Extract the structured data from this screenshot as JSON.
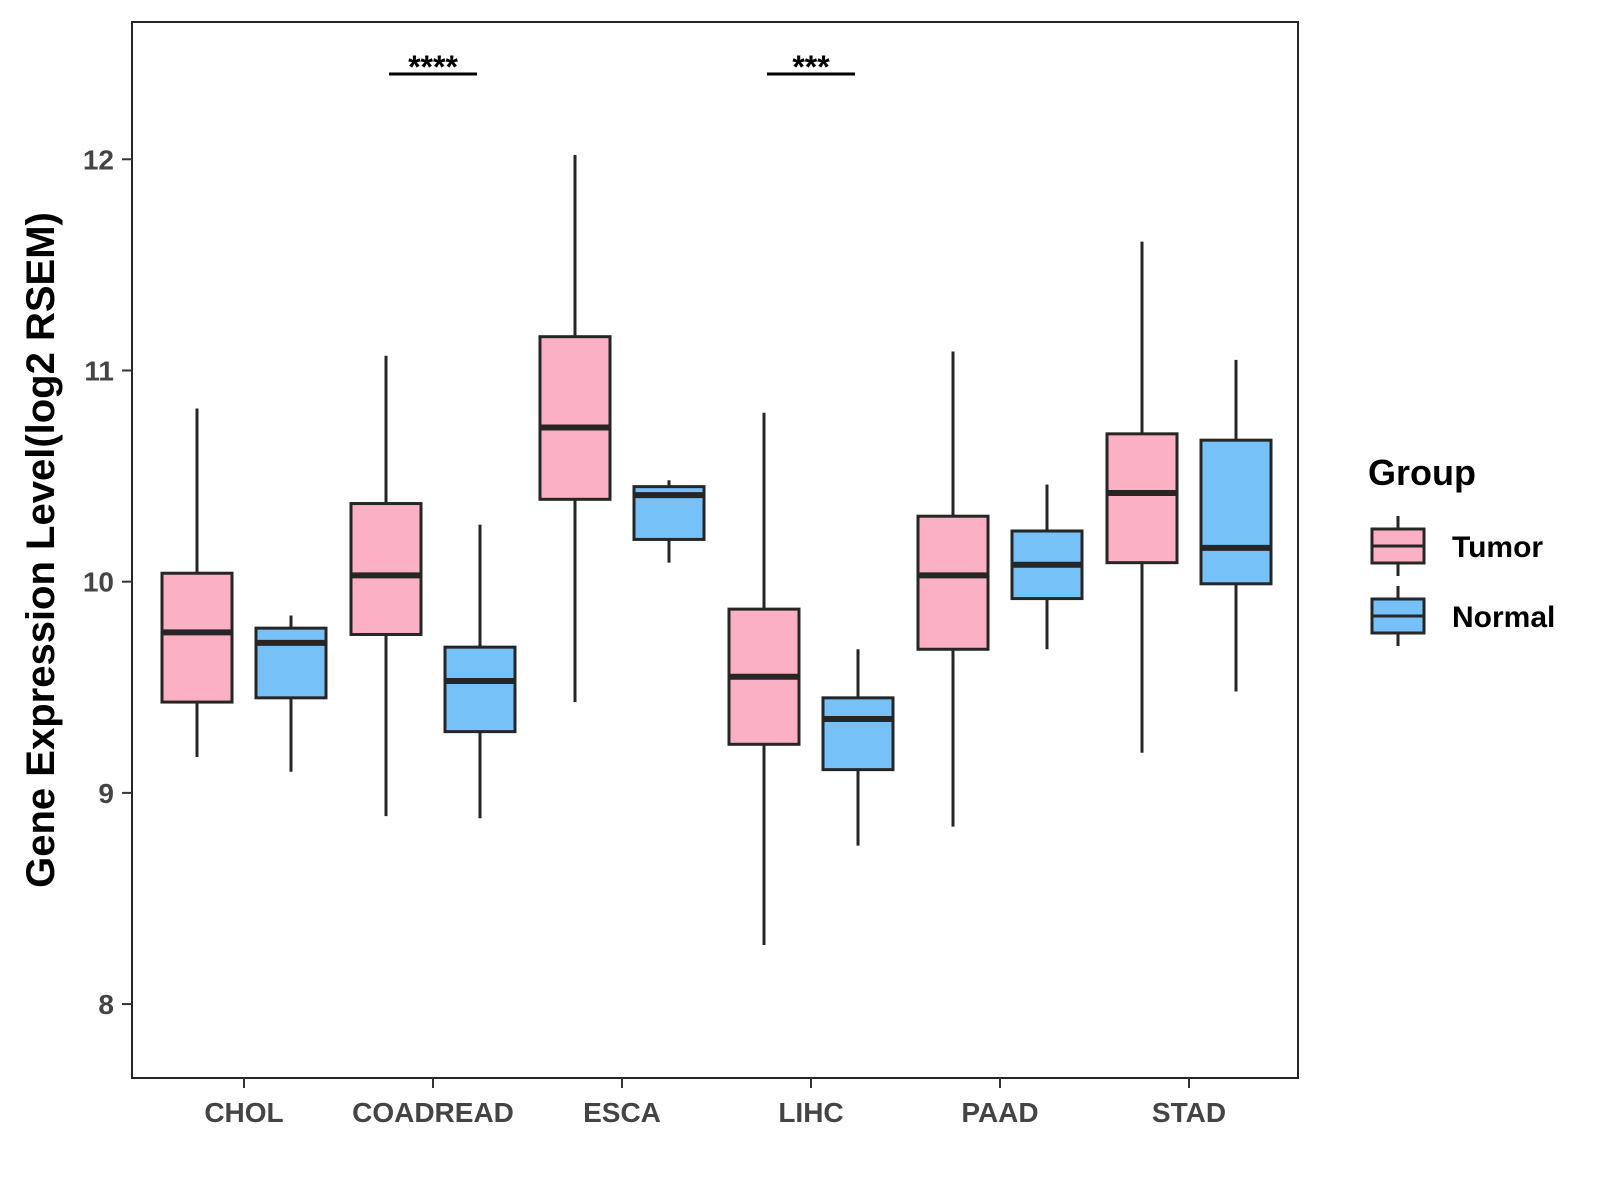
{
  "chart_data": {
    "type": "boxplot",
    "title": "",
    "xlabel": "",
    "ylabel": "Gene Expression Level(log2 RSEM)",
    "ylim": [
      7.65,
      12.65
    ],
    "yticks": [
      8,
      9,
      10,
      11,
      12
    ],
    "categories": [
      "CHOL",
      "COADREAD",
      "ESCA",
      "LIHC",
      "PAAD",
      "STAD"
    ],
    "legend": {
      "title": "Group",
      "position": "right"
    },
    "series": [
      {
        "name": "Tumor",
        "color": "#FBB1C3",
        "boxes": [
          {
            "category": "CHOL",
            "min": 9.17,
            "q1": 9.43,
            "median": 9.76,
            "q3": 10.04,
            "max": 10.82
          },
          {
            "category": "COADREAD",
            "min": 8.89,
            "q1": 9.75,
            "median": 10.03,
            "q3": 10.37,
            "max": 11.07
          },
          {
            "category": "ESCA",
            "min": 9.43,
            "q1": 10.39,
            "median": 10.73,
            "q3": 11.16,
            "max": 12.02
          },
          {
            "category": "LIHC",
            "min": 8.28,
            "q1": 9.23,
            "median": 9.55,
            "q3": 9.87,
            "max": 10.8
          },
          {
            "category": "PAAD",
            "min": 8.84,
            "q1": 9.68,
            "median": 10.03,
            "q3": 10.31,
            "max": 11.09
          },
          {
            "category": "STAD",
            "min": 9.19,
            "q1": 10.09,
            "median": 10.42,
            "q3": 10.7,
            "max": 11.61
          }
        ]
      },
      {
        "name": "Normal",
        "color": "#76C1F8",
        "boxes": [
          {
            "category": "CHOL",
            "min": 9.1,
            "q1": 9.45,
            "median": 9.71,
            "q3": 9.78,
            "max": 9.84
          },
          {
            "category": "COADREAD",
            "min": 8.88,
            "q1": 9.29,
            "median": 9.53,
            "q3": 9.69,
            "max": 10.27
          },
          {
            "category": "ESCA",
            "min": 10.09,
            "q1": 10.2,
            "median": 10.41,
            "q3": 10.45,
            "max": 10.48
          },
          {
            "category": "LIHC",
            "min": 8.75,
            "q1": 9.11,
            "median": 9.35,
            "q3": 9.45,
            "max": 9.68
          },
          {
            "category": "PAAD",
            "min": 9.68,
            "q1": 9.92,
            "median": 10.08,
            "q3": 10.24,
            "max": 10.46
          },
          {
            "category": "STAD",
            "min": 9.48,
            "q1": 9.99,
            "median": 10.16,
            "q3": 10.67,
            "max": 11.05
          }
        ]
      }
    ],
    "annotations": [
      {
        "category": "COADREAD",
        "label": "****"
      },
      {
        "category": "LIHC",
        "label": "***"
      }
    ]
  }
}
